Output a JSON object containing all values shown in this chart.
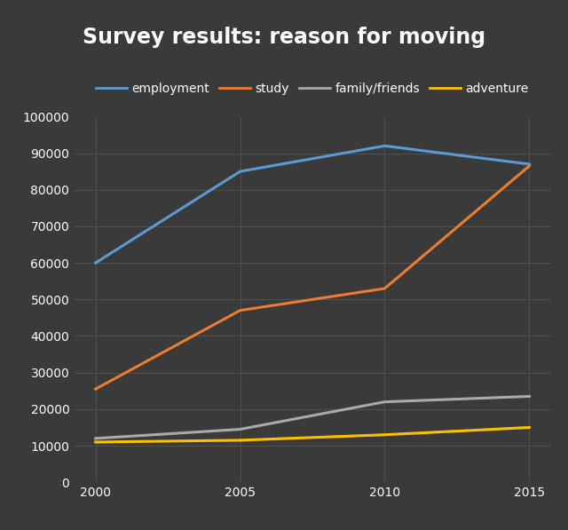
{
  "title": "Survey results: reason for moving",
  "background_color": "#3a3a3a",
  "text_color": "#ffffff",
  "grid_color": "#555555",
  "years": [
    2000,
    2005,
    2010,
    2015
  ],
  "series": [
    {
      "label": "employment",
      "color": "#5b9bd5",
      "values": [
        60000,
        85000,
        92000,
        87000
      ]
    },
    {
      "label": "study",
      "color": "#ed7d31",
      "values": [
        25500,
        47000,
        53000,
        86500
      ]
    },
    {
      "label": "family/friends",
      "color": "#aaaaaa",
      "values": [
        12000,
        14500,
        22000,
        23500
      ]
    },
    {
      "label": "adventure",
      "color": "#ffc000",
      "values": [
        11000,
        11500,
        13000,
        15000
      ]
    }
  ],
  "ylim": [
    0,
    100000
  ],
  "yticks": [
    0,
    10000,
    20000,
    30000,
    40000,
    50000,
    60000,
    70000,
    80000,
    90000,
    100000
  ],
  "xticks": [
    2000,
    2005,
    2010,
    2015
  ],
  "linewidth": 2.2,
  "title_fontsize": 17,
  "legend_fontsize": 10
}
